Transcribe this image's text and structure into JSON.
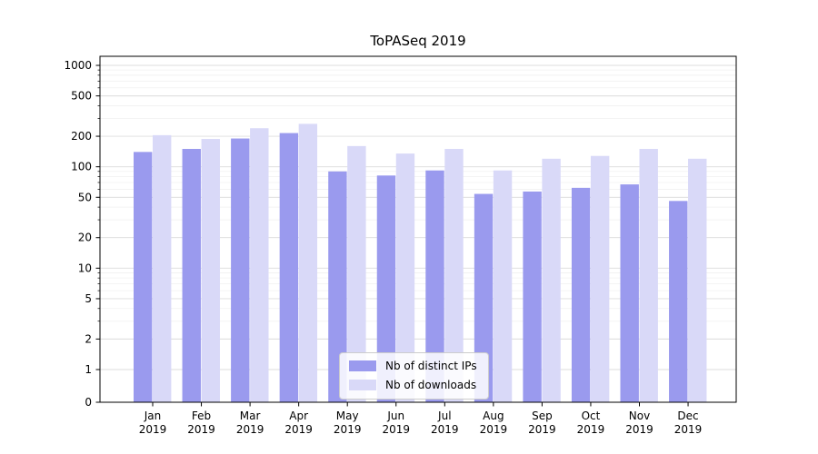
{
  "chart_data": {
    "type": "bar",
    "title": "ToPASeq 2019",
    "categories": [
      "Jan 2019",
      "Feb 2019",
      "Mar 2019",
      "Apr 2019",
      "May 2019",
      "Jun 2019",
      "Jul 2019",
      "Aug 2019",
      "Sep 2019",
      "Oct 2019",
      "Nov 2019",
      "Dec 2019"
    ],
    "series": [
      {
        "name": "Nb of distinct IPs",
        "color": "#9a9aee",
        "values": [
          140,
          150,
          190,
          215,
          90,
          82,
          92,
          54,
          57,
          62,
          67,
          46
        ]
      },
      {
        "name": "Nb of downloads",
        "color": "#d9d9f8",
        "values": [
          205,
          188,
          240,
          265,
          160,
          135,
          150,
          92,
          120,
          128,
          150,
          120
        ]
      }
    ],
    "yscale": "symlog",
    "yticks": [
      0,
      1,
      2,
      5,
      10,
      20,
      50,
      100,
      200,
      500,
      1000
    ],
    "ylim": [
      0,
      1000
    ],
    "grid": true,
    "legend_position": "lower center",
    "colors": {
      "axis": "#000000",
      "major_grid": "#dcdcdc",
      "minor_grid": "#f0f0f0",
      "background": "#ffffff"
    }
  }
}
